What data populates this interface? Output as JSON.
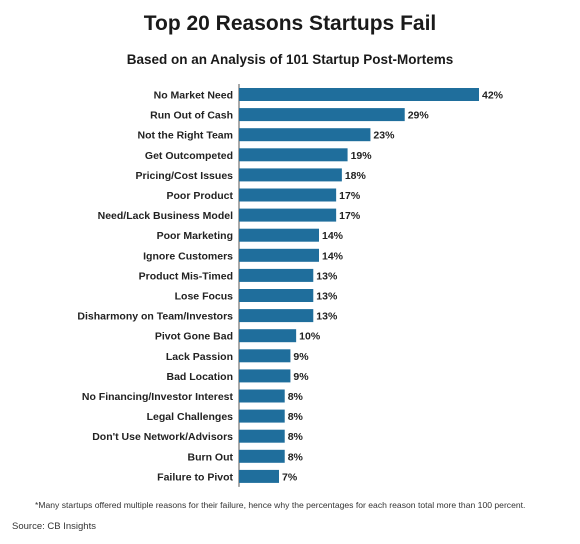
{
  "chart_data": {
    "type": "bar",
    "orientation": "horizontal",
    "title": "Top 20 Reasons Startups Fail",
    "subtitle": "Based on an Analysis of 101 Startup Post-Mortems",
    "categories": [
      "No Market Need",
      "Run Out of Cash",
      "Not the Right Team",
      "Get Outcompeted",
      "Pricing/Cost Issues",
      "Poor Product",
      "Need/Lack Business Model",
      "Poor Marketing",
      "Ignore Customers",
      "Product Mis-Timed",
      "Lose Focus",
      "Disharmony on Team/Investors",
      "Pivot Gone Bad",
      "Lack Passion",
      "Bad Location",
      "No Financing/Investor Interest",
      "Legal Challenges",
      "Don't Use Network/Advisors",
      "Burn Out",
      "Failure to Pivot"
    ],
    "values": [
      42,
      29,
      23,
      19,
      18,
      17,
      17,
      14,
      14,
      13,
      13,
      13,
      10,
      9,
      9,
      8,
      8,
      8,
      8,
      7
    ],
    "value_suffix": "%",
    "xlim": [
      0,
      42
    ],
    "grid": false,
    "legend": "none",
    "bar_color": "#1f6e9c"
  },
  "footnote": "*Many startups offered multiple reasons for their failure, hence why the percentages for each reason total more than 100 percent.",
  "source": "Source: CB Insights"
}
